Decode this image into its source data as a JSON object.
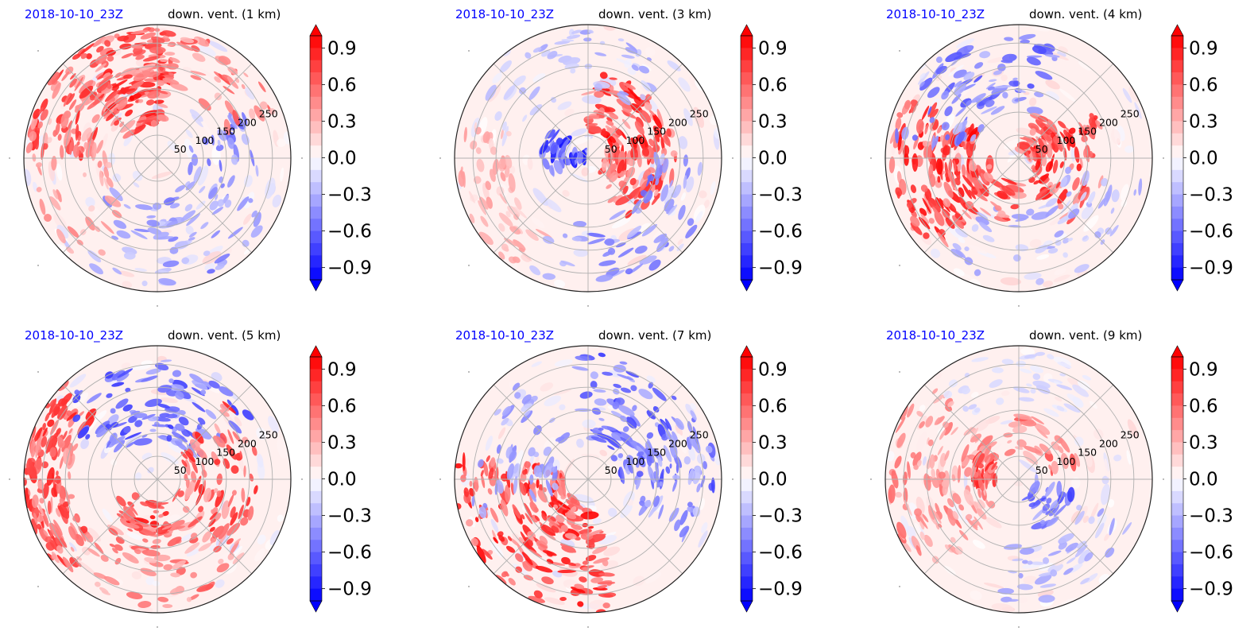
{
  "colormap": {
    "negative": "#0000ff",
    "neutral": "#ffffff",
    "positive": "#ff0000",
    "gridline": "#b0b0b0",
    "date_color": "#0000ff"
  },
  "colorbar": {
    "ticks": [
      "0.9",
      "0.6",
      "0.3",
      "0.0",
      "−0.3",
      "−0.6",
      "−0.9"
    ],
    "tick_values": [
      0.9,
      0.6,
      0.3,
      0.0,
      -0.3,
      -0.6,
      -0.9
    ],
    "range": [
      -1.0,
      1.0
    ],
    "levels": 20,
    "extend": "both"
  },
  "chart_data": [
    {
      "type": "heatmap",
      "projection": "polar",
      "title_left": "2018-10-10_23Z",
      "title_right": "down. vent. (1 km)",
      "radial_ticks": [
        "50",
        "100",
        "150",
        "200",
        "250"
      ],
      "radial_tick_values": [
        50,
        100,
        150,
        200,
        250
      ],
      "radial_max": 290,
      "value_range": [
        -1.0,
        1.0
      ],
      "pattern": "strong positive bands in north-west quadrant, weak negative streaks in east and south"
    },
    {
      "type": "heatmap",
      "projection": "polar",
      "title_left": "2018-10-10_23Z",
      "title_right": "down. vent. (3 km)",
      "radial_ticks": [
        "50",
        "100",
        "150",
        "200",
        "250"
      ],
      "radial_tick_values": [
        50,
        100,
        150,
        200,
        250
      ],
      "radial_max": 290,
      "value_range": [
        -1.0,
        1.0
      ],
      "pattern": "positive ring near 50-100 km, negative patches near center-west"
    },
    {
      "type": "heatmap",
      "projection": "polar",
      "title_left": "2018-10-10_23Z",
      "title_right": "down. vent. (4 km)",
      "radial_ticks": [
        "50",
        "100",
        "150",
        "200",
        "250"
      ],
      "radial_tick_values": [
        50,
        100,
        150,
        200,
        250
      ],
      "radial_max": 290,
      "value_range": [
        -1.0,
        1.0
      ],
      "pattern": "strong positive band to the west, positive arcs east of center, blue streaks north"
    },
    {
      "type": "heatmap",
      "projection": "polar",
      "title_left": "2018-10-10_23Z",
      "title_right": "down. vent. (5 km)",
      "radial_ticks": [
        "50",
        "100",
        "150",
        "200",
        "250"
      ],
      "radial_tick_values": [
        50,
        100,
        150,
        200,
        250
      ],
      "radial_max": 290,
      "value_range": [
        -1.0,
        1.0
      ],
      "pattern": "positive band west and south, negative streaks north"
    },
    {
      "type": "heatmap",
      "projection": "polar",
      "title_left": "2018-10-10_23Z",
      "title_right": "down. vent. (7 km)",
      "radial_ticks": [
        "50",
        "100",
        "150",
        "200",
        "250"
      ],
      "radial_tick_values": [
        50,
        100,
        150,
        200,
        250
      ],
      "radial_max": 290,
      "value_range": [
        -1.0,
        1.0
      ],
      "pattern": "strong positive arcs in south-west, negative streaks north-east"
    },
    {
      "type": "heatmap",
      "projection": "polar",
      "title_left": "2018-10-10_23Z",
      "title_right": "down. vent. (9 km)",
      "radial_ticks": [
        "50",
        "100",
        "150",
        "200",
        "250"
      ],
      "radial_tick_values": [
        50,
        100,
        150,
        200,
        250
      ],
      "radial_max": 290,
      "value_range": [
        -1.0,
        1.0
      ],
      "pattern": "weaker field, positive arcs west, negative patch south-east of center"
    }
  ]
}
